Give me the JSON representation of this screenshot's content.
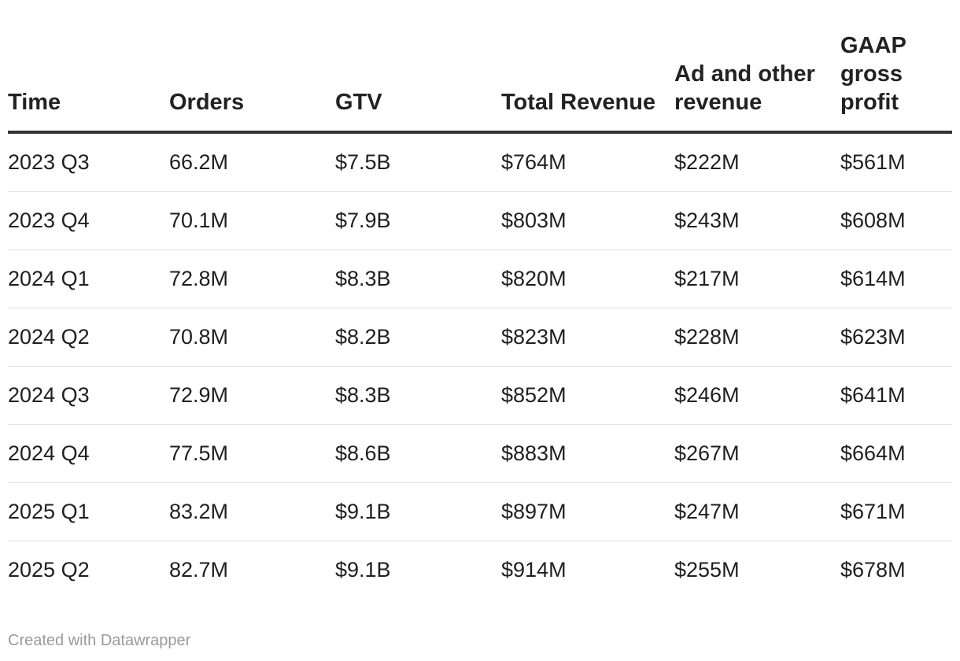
{
  "chart_data": {
    "type": "table",
    "columns": [
      "Time",
      "Orders",
      "GTV",
      "Total Revenue",
      "Ad and other revenue",
      "GAAP gross profit"
    ],
    "rows": [
      [
        "2023 Q3",
        "66.2M",
        "$7.5B",
        "$764M",
        "$222M",
        "$561M"
      ],
      [
        "2023 Q4",
        "70.1M",
        "$7.9B",
        "$803M",
        "$243M",
        "$608M"
      ],
      [
        "2024 Q1",
        "72.8M",
        "$8.3B",
        "$820M",
        "$217M",
        "$614M"
      ],
      [
        "2024 Q2",
        "70.8M",
        "$8.2B",
        "$823M",
        "$228M",
        "$623M"
      ],
      [
        "2024 Q3",
        "72.9M",
        "$8.3B",
        "$852M",
        "$246M",
        "$641M"
      ],
      [
        "2024 Q4",
        "77.5M",
        "$8.6B",
        "$883M",
        "$267M",
        "$664M"
      ],
      [
        "2025 Q1",
        "83.2M",
        "$9.1B",
        "$897M",
        "$247M",
        "$671M"
      ],
      [
        "2025 Q2",
        "82.7M",
        "$9.1B",
        "$914M",
        "$255M",
        "$678M"
      ]
    ]
  },
  "footer": {
    "credit": "Created with Datawrapper"
  },
  "colors": {
    "header_rule": "#333333",
    "row_rule": "#e3e3e3",
    "credit_text": "#9a9a9a"
  }
}
